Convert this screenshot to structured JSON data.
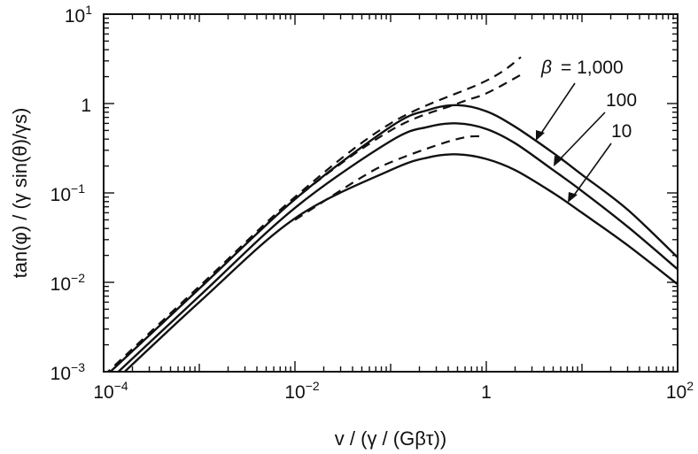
{
  "chart_data": {
    "type": "line",
    "x_scale": "log",
    "y_scale": "log",
    "xlim": [
      0.0001,
      100
    ],
    "ylim": [
      0.001,
      10
    ],
    "xlabel": "v / (γ / (Gβτ))",
    "ylabel": "tan(φ) / (γ sin(θ)/γs)",
    "x_ticks": [
      {
        "base": "10",
        "exp": "−4",
        "value": 0.0001
      },
      {
        "base": "10",
        "exp": "−2",
        "value": 0.01
      },
      {
        "base": "1",
        "exp": "",
        "value": 1
      },
      {
        "base": "10",
        "exp": "2",
        "value": 100
      }
    ],
    "y_ticks": [
      {
        "base": "10",
        "exp": "−3",
        "value": 0.001
      },
      {
        "base": "10",
        "exp": "−2",
        "value": 0.01
      },
      {
        "base": "10",
        "exp": "−1",
        "value": 0.1
      },
      {
        "base": "1",
        "exp": "",
        "value": 1
      },
      {
        "base": "10",
        "exp": "1",
        "value": 10
      }
    ],
    "legend": {
      "title": "β",
      "entries": [
        "= 1,000",
        "100",
        "10"
      ]
    },
    "series": [
      {
        "style": "solid",
        "x": [
          0.0001,
          0.001,
          0.01,
          0.1,
          0.25,
          0.5,
          1,
          2,
          5,
          10,
          30,
          100
        ],
        "y": [
          0.00085,
          0.0085,
          0.085,
          0.55,
          0.85,
          0.96,
          0.82,
          0.55,
          0.28,
          0.16,
          0.065,
          0.019
        ]
      },
      {
        "style": "solid",
        "x": [
          0.0001,
          0.001,
          0.01,
          0.1,
          0.25,
          0.5,
          1,
          2,
          5,
          10,
          30,
          100
        ],
        "y": [
          0.0007,
          0.007,
          0.068,
          0.38,
          0.55,
          0.6,
          0.52,
          0.36,
          0.18,
          0.105,
          0.042,
          0.014
        ]
      },
      {
        "style": "solid",
        "x": [
          0.0001,
          0.001,
          0.01,
          0.1,
          0.25,
          0.5,
          1,
          2,
          5,
          10,
          30,
          100
        ],
        "y": [
          0.0006,
          0.006,
          0.052,
          0.18,
          0.25,
          0.27,
          0.24,
          0.18,
          0.1,
          0.06,
          0.026,
          0.0095
        ]
      },
      {
        "style": "dashed",
        "x": [
          0.0001,
          0.001,
          0.01,
          0.1,
          1,
          2.3
        ],
        "y": [
          0.0009,
          0.009,
          0.09,
          0.6,
          1.8,
          3.3
        ]
      },
      {
        "style": "dashed",
        "x": [
          0.0001,
          0.001,
          0.01,
          0.1,
          0.5,
          1,
          2.3
        ],
        "y": [
          0.00085,
          0.0085,
          0.085,
          0.5,
          1.0,
          1.3,
          2.1
        ]
      },
      {
        "style": "dashed",
        "x": [
          0.01,
          0.05,
          0.1,
          0.3,
          0.6,
          0.9
        ],
        "y": [
          0.05,
          0.15,
          0.22,
          0.34,
          0.42,
          0.43
        ]
      }
    ]
  }
}
